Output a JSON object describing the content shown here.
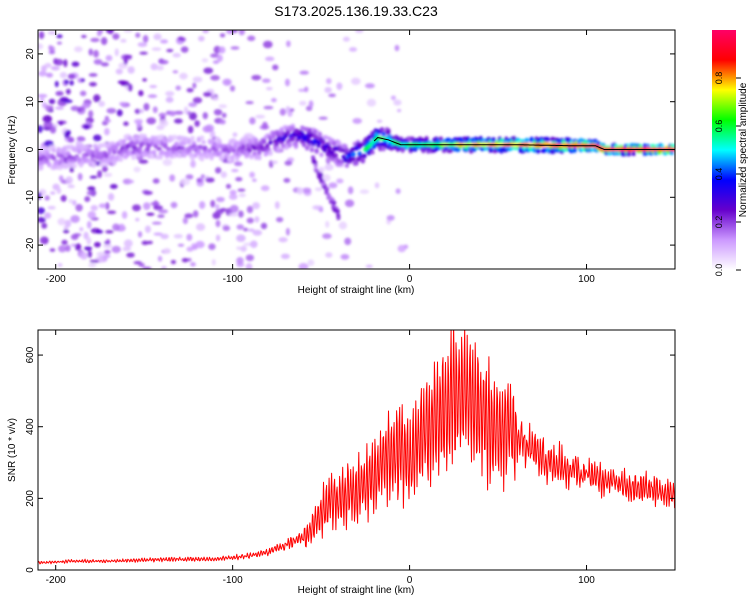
{
  "title": "S173.2025.136.19.33.C23",
  "chart_data": [
    {
      "type": "heatmap",
      "xlabel": "Height of straight line (km)",
      "ylabel": "Frequency (Hz)",
      "xlim": [
        -210,
        150
      ],
      "ylim": [
        -25,
        25
      ],
      "xticks": [
        -200,
        -100,
        0,
        100
      ],
      "yticks": [
        -20,
        -10,
        0,
        10,
        20
      ],
      "colorbar": {
        "label": "Normalized spectral amplitude",
        "ticks": [
          "0.0",
          "0.2",
          "0.4",
          "0.6",
          "0.8"
        ],
        "range": [
          0,
          1
        ],
        "colors": [
          "#ffffff",
          "#cc99ff",
          "#6600cc",
          "#0000ff",
          "#00ffff",
          "#00ff00",
          "#ffff00",
          "#ff0000",
          "#ff0066"
        ]
      },
      "ridge": {
        "x": [
          -210,
          -190,
          -170,
          -160,
          -140,
          -120,
          -100,
          -85,
          -75,
          -65,
          -55,
          -45,
          -35,
          -25,
          -18,
          -12,
          -5,
          0,
          10,
          30,
          60,
          90,
          105,
          110,
          130,
          150
        ],
        "y": [
          -2.0,
          -1.5,
          -1.0,
          0.5,
          0.5,
          0.3,
          0.0,
          0.3,
          2.0,
          3.0,
          2.0,
          0.0,
          -1.5,
          0.0,
          2.5,
          2.0,
          1.0,
          1.0,
          1.0,
          1.0,
          1.0,
          0.8,
          0.8,
          0.0,
          0.0,
          0.0
        ],
        "amplitude": [
          0.2,
          0.2,
          0.2,
          0.25,
          0.2,
          0.2,
          0.2,
          0.25,
          0.3,
          0.35,
          0.4,
          0.35,
          0.4,
          0.55,
          0.6,
          0.55,
          0.55,
          0.6,
          0.6,
          0.75,
          0.8,
          0.85,
          0.9,
          0.95,
          0.95,
          0.95
        ]
      },
      "branch": {
        "x": [
          -55,
          -50,
          -45,
          -40
        ],
        "y": [
          -2,
          -6,
          -10,
          -14
        ]
      }
    },
    {
      "type": "line",
      "xlabel": "Height of straight line (km)",
      "ylabel": "SNR (10 * v/v)",
      "xlim": [
        -210,
        150
      ],
      "ylim": [
        0,
        670
      ],
      "xticks": [
        -200,
        -100,
        0,
        100
      ],
      "yticks": [
        0,
        200,
        400,
        600
      ],
      "series": [
        {
          "color": "#ff0000",
          "x": [
            -210,
            -190,
            -170,
            -150,
            -130,
            -110,
            -90,
            -80,
            -70,
            -60,
            -55,
            -50,
            -45,
            -40,
            -35,
            -30,
            -25,
            -20,
            -15,
            -10,
            -5,
            0,
            5,
            10,
            15,
            20,
            25,
            30,
            35,
            40,
            45,
            50,
            55,
            60,
            70,
            80,
            90,
            100,
            110,
            120,
            130,
            140,
            150
          ],
          "y": [
            20,
            25,
            25,
            28,
            30,
            30,
            40,
            50,
            70,
            90,
            120,
            160,
            190,
            200,
            210,
            220,
            240,
            260,
            300,
            330,
            330,
            310,
            350,
            390,
            430,
            450,
            480,
            500,
            480,
            440,
            400,
            390,
            400,
            380,
            330,
            300,
            280,
            270,
            250,
            240,
            225,
            220,
            215
          ]
        }
      ]
    }
  ]
}
